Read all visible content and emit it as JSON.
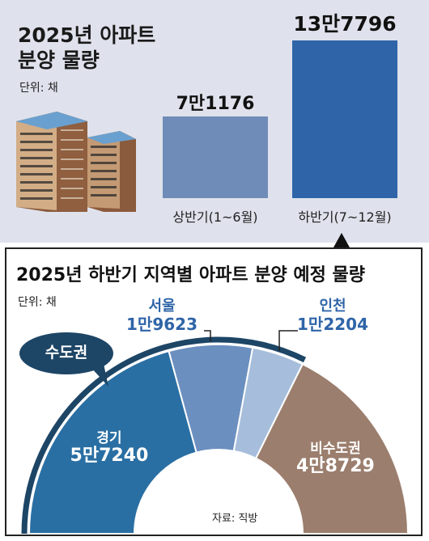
{
  "top": {
    "title_line1": "2025년 아파트",
    "title_line2": "분양 물량",
    "unit": "단위: 채"
  },
  "bottom": {
    "title": "2025년 하반기 지역별 아파트 분양 예정 물량",
    "unit": "단위: 채",
    "group_label": "수도권",
    "source": "자료: 직방"
  },
  "colors": {
    "top_bg": "#dfe2ec",
    "first_half_bar": "#6f8cb8",
    "second_half_bar": "#2f65a8",
    "gyeonggi": "#2a6fa3",
    "seoul": "#6b8fbf",
    "incheon": "#a6bedb",
    "non_capital": "#9b7e6d",
    "callout": "#1d4566"
  },
  "chart_data": [
    {
      "type": "bar",
      "categories": [
        "상반기(1~6월)",
        "하반기(7~12월)"
      ],
      "values": [
        71176,
        137796
      ],
      "value_labels": [
        "7만1176",
        "13만7796"
      ],
      "unit": "채"
    },
    {
      "type": "pie",
      "style": "half-donut",
      "slices": [
        {
          "name": "경기",
          "value": 57240,
          "label": "5만7240",
          "color": "#2a6fa3"
        },
        {
          "name": "서울",
          "value": 19623,
          "label": "1만9623",
          "color": "#6b8fbf"
        },
        {
          "name": "인천",
          "value": 12204,
          "label": "1만2204",
          "color": "#a6bedb"
        },
        {
          "name": "비수도권",
          "value": 48729,
          "label": "4만8729",
          "color": "#9b7e6d"
        }
      ],
      "unit": "채"
    }
  ]
}
